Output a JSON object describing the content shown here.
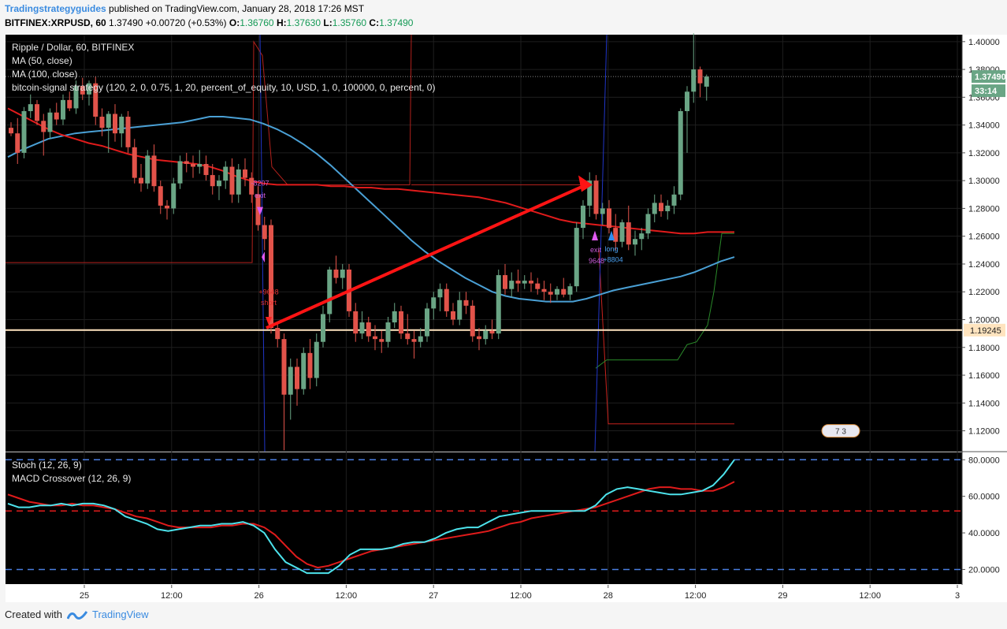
{
  "header": {
    "author": "Tradingstrategyguides",
    "published": " published on TradingView.com, January 28, 2018 17:26 MST",
    "symbol": "BITFINEX:XRPUSD, 60",
    "last": "1.37490",
    "change": "+0.00720 (+0.53%)",
    "o_label": "O:",
    "o": "1.36760",
    "h_label": "H:",
    "h": "1.37630",
    "l_label": "L:",
    "l": "1.35760",
    "c_label": "C:",
    "c": "1.37490"
  },
  "main_legend": [
    "Ripple / Dollar, 60, BITFINEX",
    "MA (50, close)",
    "MA (100, close)",
    "bitcoin-signal strategy (120, 2, 0, 0.75, 1, 20, percent_of_equity, 10, USD, 1, 0, 100000, 0, percent, 0)"
  ],
  "sub_legend": [
    "Stoch (12, 26, 9)",
    "MACD Crossover (12, 26, 9)"
  ],
  "price_badge": "1.37490",
  "countdown": "33:14",
  "level_badge": "1.19245",
  "signals": {
    "exit1_num": "-8207",
    "exit1": "exit",
    "short_num": "+9648",
    "short": "short",
    "exit2": "exit",
    "exit2_num": "9648",
    "long": "long",
    "long_num": "+8804"
  },
  "events_badge": "7 3",
  "footer": {
    "created": "Created with",
    "brand": "TradingView"
  },
  "colors": {
    "bg": "#000000",
    "up": "#6aa585",
    "down": "#e2534a",
    "ma50": "#4aa0d5",
    "ma100": "#e01b1b",
    "stoch": "#4de3ec",
    "macd": "#e01b1b",
    "grid": "#1e1e1e",
    "axis_bg": "#ffffff",
    "level": "#ffe4bf"
  },
  "chart_data": [
    {
      "type": "candlestick",
      "title": "Ripple / Dollar, 60, BITFINEX",
      "x_ticks": [
        "25",
        "12:00",
        "26",
        "12:00",
        "27",
        "12:00",
        "28",
        "12:00",
        "29",
        "12:00",
        "3"
      ],
      "y_ticks": [
        "1.40000",
        "1.38000",
        "1.36000",
        "1.34000",
        "1.32000",
        "1.30000",
        "1.28000",
        "1.26000",
        "1.24000",
        "1.22000",
        "1.20000",
        "1.18000",
        "1.16000",
        "1.14000",
        "1.12000"
      ],
      "ylim": [
        1.105,
        1.405
      ],
      "candles": [
        [
          1.338,
          1.342,
          1.332,
          1.334
        ],
        [
          1.334,
          1.345,
          1.312,
          1.32
        ],
        [
          1.32,
          1.353,
          1.316,
          1.35
        ],
        [
          1.35,
          1.362,
          1.345,
          1.355
        ],
        [
          1.355,
          1.358,
          1.34,
          1.343
        ],
        [
          1.343,
          1.348,
          1.318,
          1.335
        ],
        [
          1.335,
          1.352,
          1.33,
          1.349
        ],
        [
          1.349,
          1.356,
          1.34,
          1.344
        ],
        [
          1.344,
          1.362,
          1.34,
          1.358
        ],
        [
          1.358,
          1.364,
          1.35,
          1.352
        ],
        [
          1.352,
          1.372,
          1.348,
          1.368
        ],
        [
          1.368,
          1.374,
          1.358,
          1.362
        ],
        [
          1.362,
          1.372,
          1.354,
          1.37
        ],
        [
          1.37,
          1.375,
          1.34,
          1.346
        ],
        [
          1.346,
          1.352,
          1.332,
          1.338
        ],
        [
          1.338,
          1.35,
          1.32,
          1.348
        ],
        [
          1.348,
          1.355,
          1.328,
          1.334
        ],
        [
          1.334,
          1.348,
          1.324,
          1.346
        ],
        [
          1.346,
          1.35,
          1.32,
          1.324
        ],
        [
          1.324,
          1.33,
          1.298,
          1.302
        ],
        [
          1.302,
          1.312,
          1.292,
          1.298
        ],
        [
          1.298,
          1.322,
          1.294,
          1.318
        ],
        [
          1.318,
          1.326,
          1.292,
          1.296
        ],
        [
          1.296,
          1.3,
          1.276,
          1.282
        ],
        [
          1.282,
          1.286,
          1.272,
          1.28
        ],
        [
          1.28,
          1.302,
          1.276,
          1.298
        ],
        [
          1.298,
          1.318,
          1.294,
          1.314
        ],
        [
          1.314,
          1.32,
          1.306,
          1.312
        ],
        [
          1.312,
          1.318,
          1.302,
          1.31
        ],
        [
          1.31,
          1.322,
          1.305,
          1.312
        ],
        [
          1.312,
          1.318,
          1.3,
          1.304
        ],
        [
          1.304,
          1.312,
          1.29,
          1.296
        ],
        [
          1.296,
          1.304,
          1.286,
          1.3
        ],
        [
          1.3,
          1.314,
          1.294,
          1.31
        ],
        [
          1.31,
          1.316,
          1.284,
          1.29
        ],
        [
          1.29,
          1.312,
          1.284,
          1.308
        ],
        [
          1.308,
          1.316,
          1.296,
          1.302
        ],
        [
          1.302,
          1.306,
          1.284,
          1.29
        ],
        [
          1.29,
          1.296,
          1.264,
          1.268
        ],
        [
          1.268,
          1.274,
          1.25,
          1.258
        ],
        [
          1.268,
          1.272,
          1.19,
          1.194
        ],
        [
          1.194,
          1.198,
          1.18,
          1.186
        ],
        [
          1.186,
          1.19,
          1.106,
          1.146
        ],
        [
          1.146,
          1.172,
          1.128,
          1.166
        ],
        [
          1.166,
          1.172,
          1.138,
          1.15
        ],
        [
          1.15,
          1.18,
          1.146,
          1.176
        ],
        [
          1.176,
          1.186,
          1.15,
          1.158
        ],
        [
          1.158,
          1.19,
          1.152,
          1.184
        ],
        [
          1.184,
          1.21,
          1.18,
          1.204
        ],
        [
          1.204,
          1.238,
          1.198,
          1.236
        ],
        [
          1.236,
          1.246,
          1.226,
          1.23
        ],
        [
          1.23,
          1.24,
          1.222,
          1.236
        ],
        [
          1.236,
          1.24,
          1.202,
          1.206
        ],
        [
          1.206,
          1.212,
          1.184,
          1.19
        ],
        [
          1.19,
          1.206,
          1.186,
          1.198
        ],
        [
          1.198,
          1.202,
          1.184,
          1.188
        ],
        [
          1.188,
          1.196,
          1.178,
          1.186
        ],
        [
          1.186,
          1.192,
          1.176,
          1.184
        ],
        [
          1.184,
          1.202,
          1.18,
          1.198
        ],
        [
          1.198,
          1.212,
          1.194,
          1.206
        ],
        [
          1.206,
          1.21,
          1.186,
          1.19
        ],
        [
          1.19,
          1.204,
          1.182,
          1.186
        ],
        [
          1.186,
          1.192,
          1.172,
          1.184
        ],
        [
          1.184,
          1.194,
          1.18,
          1.188
        ],
        [
          1.188,
          1.212,
          1.184,
          1.208
        ],
        [
          1.208,
          1.22,
          1.2,
          1.216
        ],
        [
          1.216,
          1.226,
          1.206,
          1.222
        ],
        [
          1.222,
          1.226,
          1.202,
          1.206
        ],
        [
          1.206,
          1.212,
          1.196,
          1.2
        ],
        [
          1.2,
          1.22,
          1.196,
          1.214
        ],
        [
          1.214,
          1.22,
          1.204,
          1.21
        ],
        [
          1.21,
          1.214,
          1.184,
          1.188
        ],
        [
          1.188,
          1.194,
          1.178,
          1.186
        ],
        [
          1.186,
          1.196,
          1.182,
          1.192
        ],
        [
          1.192,
          1.2,
          1.186,
          1.19
        ],
        [
          1.19,
          1.236,
          1.186,
          1.232
        ],
        [
          1.232,
          1.24,
          1.218,
          1.222
        ],
        [
          1.222,
          1.234,
          1.216,
          1.228
        ],
        [
          1.228,
          1.236,
          1.22,
          1.226
        ],
        [
          1.226,
          1.232,
          1.222,
          1.228
        ],
        [
          1.228,
          1.234,
          1.22,
          1.226
        ],
        [
          1.226,
          1.23,
          1.218,
          1.222
        ],
        [
          1.222,
          1.228,
          1.214,
          1.22
        ],
        [
          1.22,
          1.226,
          1.212,
          1.218
        ],
        [
          1.218,
          1.224,
          1.214,
          1.222
        ],
        [
          1.222,
          1.23,
          1.216,
          1.218
        ],
        [
          1.218,
          1.226,
          1.214,
          1.224
        ],
        [
          1.224,
          1.27,
          1.22,
          1.266
        ],
        [
          1.266,
          1.286,
          1.258,
          1.282
        ],
        [
          1.282,
          1.306,
          1.274,
          1.3
        ],
        [
          1.3,
          1.304,
          1.272,
          1.276
        ],
        [
          1.276,
          1.284,
          1.268,
          1.28
        ],
        [
          1.28,
          1.286,
          1.262,
          1.266
        ],
        [
          1.266,
          1.276,
          1.25,
          1.256
        ],
        [
          1.256,
          1.272,
          1.252,
          1.27
        ],
        [
          1.27,
          1.282,
          1.25,
          1.254
        ],
        [
          1.254,
          1.264,
          1.246,
          1.258
        ],
        [
          1.258,
          1.266,
          1.25,
          1.262
        ],
        [
          1.262,
          1.28,
          1.258,
          1.276
        ],
        [
          1.276,
          1.29,
          1.27,
          1.284
        ],
        [
          1.284,
          1.29,
          1.274,
          1.278
        ],
        [
          1.278,
          1.286,
          1.272,
          1.282
        ],
        [
          1.282,
          1.296,
          1.276,
          1.29
        ],
        [
          1.29,
          1.352,
          1.286,
          1.35
        ],
        [
          1.35,
          1.368,
          1.32,
          1.364
        ],
        [
          1.364,
          1.406,
          1.356,
          1.38
        ],
        [
          1.38,
          1.382,
          1.36,
          1.37
        ],
        [
          1.3676,
          1.3763,
          1.3576,
          1.3749
        ]
      ],
      "ma50": [
        1.317,
        1.322,
        1.326,
        1.33,
        1.332,
        1.334,
        1.335,
        1.336,
        1.337,
        1.338,
        1.339,
        1.34,
        1.341,
        1.342,
        1.344,
        1.346,
        1.346,
        1.345,
        1.344,
        1.341,
        1.337,
        1.332,
        1.326,
        1.319,
        1.311,
        1.302,
        1.293,
        1.284,
        1.275,
        1.266,
        1.257,
        1.249,
        1.242,
        1.236,
        1.23,
        1.225,
        1.22,
        1.217,
        1.215,
        1.214,
        1.213,
        1.213,
        1.213,
        1.215,
        1.218,
        1.221,
        1.223,
        1.225,
        1.227,
        1.229,
        1.231,
        1.234,
        1.238,
        1.242,
        1.245
      ],
      "ma100": [
        1.352,
        1.347,
        1.342,
        1.337,
        1.333,
        1.33,
        1.327,
        1.325,
        1.322,
        1.319,
        1.317,
        1.315,
        1.314,
        1.313,
        1.312,
        1.31,
        1.307,
        1.303,
        1.3,
        1.298,
        1.297,
        1.297,
        1.297,
        1.297,
        1.296,
        1.296,
        1.295,
        1.295,
        1.294,
        1.294,
        1.293,
        1.292,
        1.291,
        1.29,
        1.289,
        1.288,
        1.286,
        1.284,
        1.281,
        1.278,
        1.275,
        1.272,
        1.27,
        1.269,
        1.268,
        1.267,
        1.266,
        1.265,
        1.264,
        1.263,
        1.262,
        1.262,
        1.263,
        1.263,
        1.263
      ],
      "level": 1.19245
    },
    {
      "type": "line",
      "title": "Stoch (12, 26, 9) / MACD Crossover (12, 26, 9)",
      "y_ticks": [
        "80.0000",
        "60.0000",
        "40.0000",
        "20.0000"
      ],
      "ylim": [
        12,
        84
      ],
      "hlines": [
        80,
        52,
        20
      ],
      "series": [
        {
          "name": "Stoch (12, 26, 9)",
          "values": [
            56,
            54,
            54,
            55,
            55,
            56,
            55,
            56,
            56,
            55,
            53,
            49,
            47,
            45,
            42,
            41,
            42,
            43,
            44,
            44,
            45,
            45,
            46,
            44,
            40,
            31,
            24,
            21,
            18,
            18,
            18,
            22,
            28,
            31,
            31,
            31,
            32,
            34,
            35,
            35,
            37,
            40,
            42,
            43,
            43,
            46,
            49,
            50,
            51,
            52,
            52,
            52,
            52,
            52,
            52,
            55,
            61,
            64,
            65,
            64,
            63,
            62,
            61,
            61,
            62,
            63,
            66,
            72,
            80
          ]
        },
        {
          "name": "MACD Crossover (12, 26, 9)",
          "values": [
            61,
            59,
            57,
            56,
            55,
            55,
            56,
            55,
            55,
            54,
            53,
            51,
            49,
            48,
            46,
            44,
            43,
            43,
            43,
            43,
            44,
            44,
            45,
            45,
            43,
            39,
            33,
            27,
            23,
            21,
            22,
            24,
            26,
            28,
            30,
            31,
            32,
            33,
            34,
            35,
            36,
            37,
            38,
            39,
            40,
            41,
            43,
            45,
            46,
            48,
            49,
            50,
            51,
            52,
            53,
            54,
            56,
            58,
            60,
            62,
            64,
            65,
            65,
            64,
            64,
            63,
            63,
            65,
            68
          ]
        }
      ]
    }
  ]
}
